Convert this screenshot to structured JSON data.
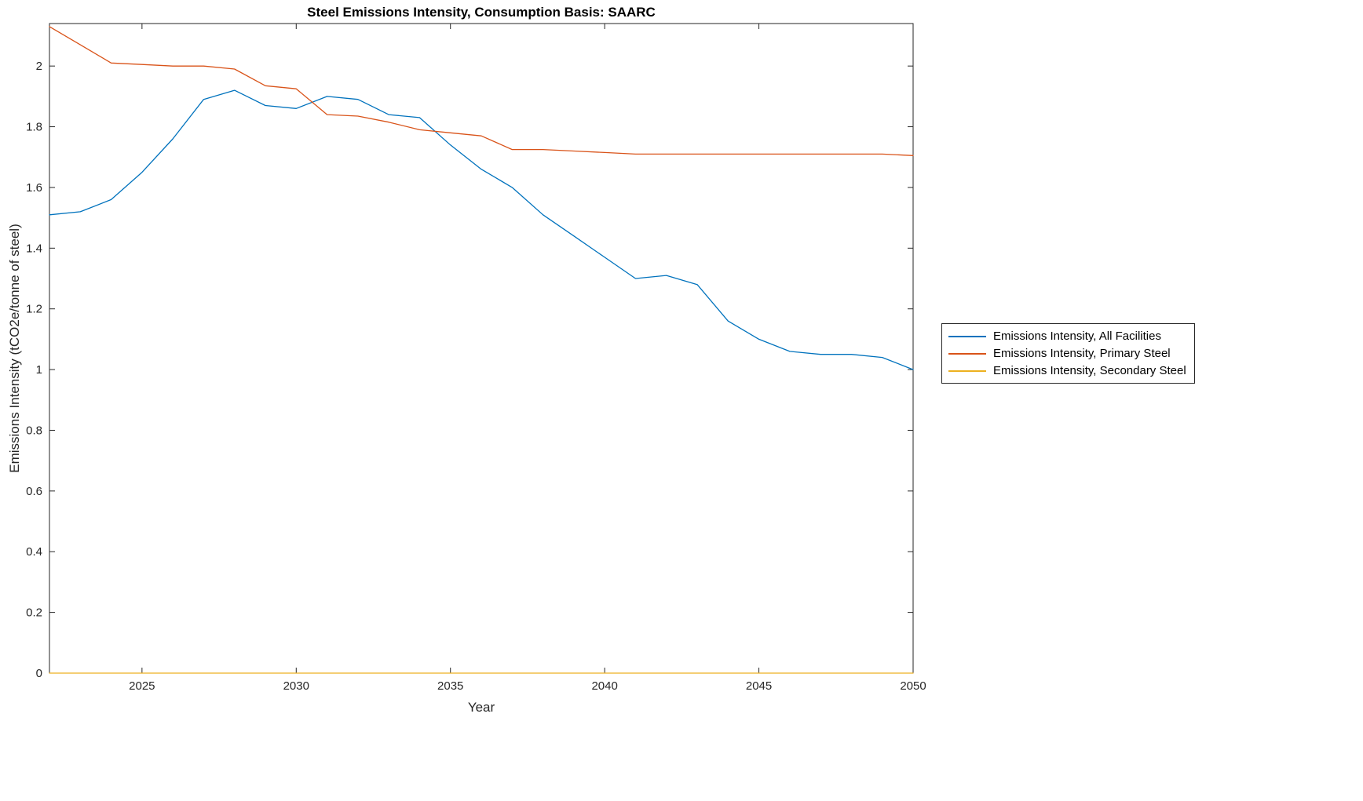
{
  "chart_data": {
    "type": "line",
    "title": "Steel Emissions Intensity, Consumption Basis: SAARC",
    "xlabel": "Year",
    "ylabel": "Emissions Intensity (tCO2e/tonne of steel)",
    "xlim": [
      2022,
      2050
    ],
    "ylim": [
      0,
      2.14
    ],
    "xticks": [
      2025,
      2030,
      2035,
      2040,
      2045,
      2050
    ],
    "yticks": [
      0,
      0.2,
      0.4,
      0.6,
      0.8,
      1,
      1.2,
      1.4,
      1.6,
      1.8,
      2
    ],
    "grid": false,
    "legend_position": "right-outside",
    "x": [
      2022,
      2023,
      2024,
      2025,
      2026,
      2027,
      2028,
      2029,
      2030,
      2031,
      2032,
      2033,
      2034,
      2035,
      2036,
      2037,
      2038,
      2039,
      2040,
      2041,
      2042,
      2043,
      2044,
      2045,
      2046,
      2047,
      2048,
      2049,
      2050
    ],
    "series": [
      {
        "name": "Emissions Intensity, All Facilities",
        "color": "#0072BD",
        "values": [
          1.51,
          1.52,
          1.56,
          1.65,
          1.76,
          1.89,
          1.92,
          1.87,
          1.86,
          1.9,
          1.89,
          1.84,
          1.83,
          1.74,
          1.66,
          1.6,
          1.51,
          1.44,
          1.37,
          1.3,
          1.31,
          1.28,
          1.16,
          1.1,
          1.06,
          1.05,
          1.05,
          1.04,
          1.0
        ]
      },
      {
        "name": "Emissions Intensity, Primary Steel",
        "color": "#D95319",
        "values": [
          2.13,
          2.07,
          2.01,
          2.005,
          2.0,
          2.0,
          1.99,
          1.935,
          1.925,
          1.84,
          1.835,
          1.815,
          1.79,
          1.78,
          1.77,
          1.725,
          1.725,
          1.72,
          1.715,
          1.71,
          1.71,
          1.71,
          1.71,
          1.71,
          1.71,
          1.71,
          1.71,
          1.71,
          1.705
        ]
      },
      {
        "name": "Emissions Intensity, Secondary Steel",
        "color": "#EDB120",
        "values": [
          0,
          0,
          0,
          0,
          0,
          0,
          0,
          0,
          0,
          0,
          0,
          0,
          0,
          0,
          0,
          0,
          0,
          0,
          0,
          0,
          0,
          0,
          0,
          0,
          0,
          0,
          0,
          0,
          0
        ]
      }
    ]
  }
}
